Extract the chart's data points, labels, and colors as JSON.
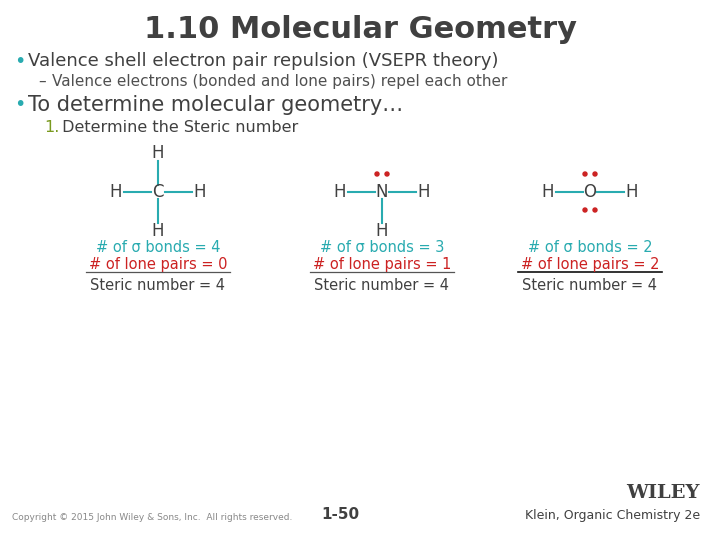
{
  "title": "1.10 Molecular Geometry",
  "bullet1": "Valence shell electron pair repulsion (VSEPR theory)",
  "bullet1_sub": "Valence electrons (bonded and lone pairs) repel each other",
  "bullet2": "To determine molecular geometry…",
  "step1_num": "1.",
  "step1_text": " Determine the Steric number",
  "bg_color": "#ffffff",
  "title_color": "#404040",
  "bullet_color": "#404040",
  "sub_color": "#505050",
  "teal_color": "#29ABB0",
  "red_color": "#cc2222",
  "green_color": "#7a9a20",
  "bond_color": "#29ABB0",
  "molecule1_bonds_text": "# of σ bonds = 4",
  "molecule1_pairs_text": "# of lone pairs = 0",
  "molecule1_steric_text": "Steric number = 4",
  "molecule2_bonds_text": "# of σ bonds = 3",
  "molecule2_pairs_text": "# of lone pairs = 1",
  "molecule2_steric_text": "Steric number = 4",
  "molecule3_bonds_text": "# of σ bonds = 2",
  "molecule3_pairs_text": "# of lone pairs = 2",
  "molecule3_steric_text": "Steric number = 4",
  "copyright": "Copyright © 2015 John Wiley & Sons, Inc.  All rights reserved.",
  "page_num": "1-50",
  "publisher": "WILEY",
  "book": "Klein, Organic Chemistry 2e"
}
